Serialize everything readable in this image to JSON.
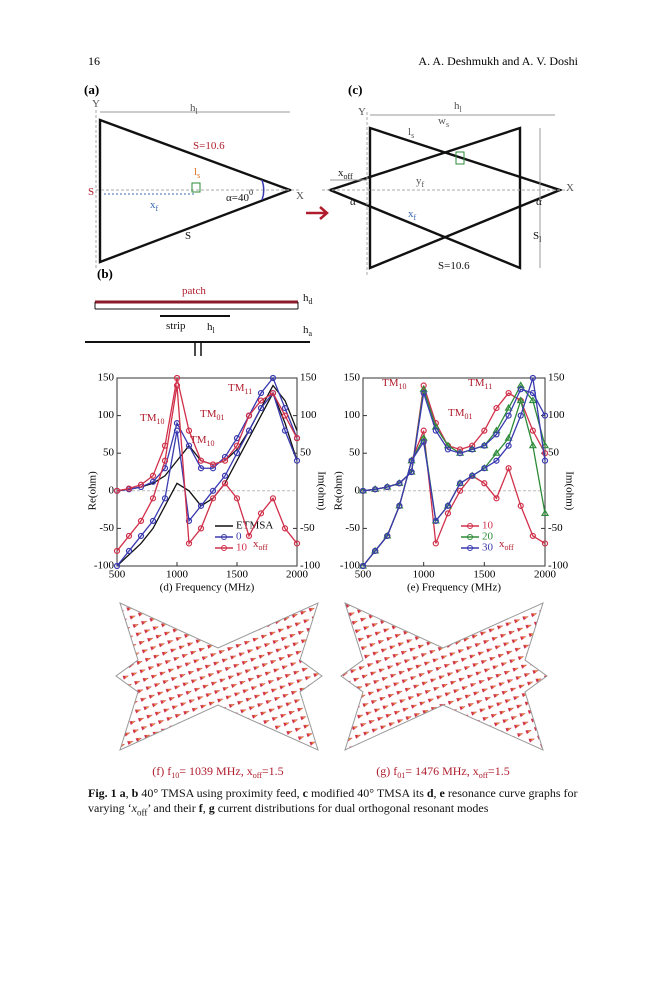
{
  "header": {
    "page": "16",
    "authors": "A. A. Deshmukh and A. V. Doshi"
  },
  "diagram": {
    "a": {
      "label": "(a)",
      "texts": [
        [
          {
            "text": "Y"
          }
        ],
        [
          {
            "text": "h"
          },
          {
            "text": "l",
            "style": "sub"
          }
        ],
        [
          {
            "text": "S=10.6"
          }
        ],
        [
          {
            "text": "S"
          }
        ],
        [
          {
            "text": "x"
          },
          {
            "text": "f",
            "style": "sub"
          }
        ],
        [
          {
            "text": "l"
          },
          {
            "text": "s",
            "style": "sub"
          }
        ],
        [
          {
            "text": "α=40"
          },
          {
            "text": "0",
            "style": "sup"
          }
        ],
        [
          {
            "text": "X"
          }
        ],
        [
          {
            "text": "S"
          }
        ]
      ]
    },
    "b": {
      "label": "(b)",
      "texts": [
        [
          {
            "text": "patch"
          }
        ],
        [
          {
            "text": "h"
          },
          {
            "text": "d",
            "style": "sub"
          }
        ],
        [
          {
            "text": "strip"
          }
        ],
        [
          {
            "text": "h"
          },
          {
            "text": "l",
            "style": "sub"
          }
        ],
        [
          {
            "text": "h"
          },
          {
            "text": "a",
            "style": "sub"
          }
        ]
      ]
    },
    "c": {
      "label": "(c)",
      "texts": [
        [
          {
            "text": "Y"
          }
        ],
        [
          {
            "text": "h"
          },
          {
            "text": "l",
            "style": "sub"
          }
        ],
        [
          {
            "text": "w"
          },
          {
            "text": "s",
            "style": "sub"
          }
        ],
        [
          {
            "text": "l"
          },
          {
            "text": "s",
            "style": "sub"
          }
        ],
        [
          {
            "text": "x"
          },
          {
            "text": "off",
            "style": "sub"
          }
        ],
        [
          {
            "text": "y"
          },
          {
            "text": "f",
            "style": "sub"
          }
        ],
        [
          {
            "text": "x"
          },
          {
            "text": "f",
            "style": "sub"
          }
        ],
        [
          {
            "text": "α"
          }
        ],
        [
          {
            "text": "α"
          }
        ],
        [
          {
            "text": "X"
          }
        ],
        [
          {
            "text": "S"
          },
          {
            "text": "l",
            "style": "sub"
          }
        ],
        [
          {
            "text": "S=10.6"
          }
        ]
      ]
    }
  },
  "charts": [
    {
      "type": "line",
      "xlabel": "(d) Frequency (MHz)",
      "ylabel": "Re(ohm)",
      "y2label": "Im(ohm)",
      "x": [
        500,
        600,
        700,
        800,
        900,
        1000,
        1100,
        1200,
        1300,
        1400,
        1500,
        1600,
        1700,
        1800,
        1900,
        2000
      ],
      "xlim": [
        500,
        2000
      ],
      "xticks": [
        500,
        1000,
        1500,
        2000
      ],
      "ylim": [
        -100,
        150
      ],
      "yticks": [
        -100,
        -50,
        0,
        50,
        100,
        150
      ],
      "y2lim": [
        -100,
        150
      ],
      "y2ticks": [
        -100,
        -50,
        50,
        100,
        150
      ],
      "legend_title": [
        {
          "text": "x"
        },
        {
          "text": "off",
          "style": "sub"
        }
      ],
      "series": [
        {
          "name": "ETMSA",
          "color": "#111111",
          "marker": "none",
          "re": [
            0,
            2,
            5,
            10,
            20,
            40,
            60,
            40,
            35,
            40,
            55,
            80,
            110,
            140,
            120,
            80
          ],
          "im": [
            -100,
            -85,
            -70,
            -50,
            -20,
            10,
            0,
            -20,
            -10,
            10,
            40,
            70,
            100,
            130,
            90,
            40
          ]
        },
        {
          "name": "0",
          "color": "#3a3ab0",
          "marker": "circle",
          "re": [
            0,
            2,
            5,
            12,
            30,
            90,
            60,
            30,
            30,
            45,
            70,
            100,
            130,
            150,
            110,
            70
          ],
          "im": [
            -100,
            -80,
            -60,
            -40,
            -10,
            80,
            -40,
            -20,
            0,
            20,
            50,
            80,
            110,
            130,
            80,
            40
          ]
        },
        {
          "name": "10",
          "color": "#d0304a",
          "marker": "circle",
          "re": [
            0,
            3,
            8,
            20,
            60,
            150,
            80,
            40,
            35,
            40,
            60,
            100,
            120,
            130,
            100,
            70
          ],
          "im": [
            -80,
            -60,
            -40,
            -10,
            40,
            140,
            -70,
            -50,
            -10,
            10,
            -10,
            -60,
            -30,
            -10,
            -50,
            -70
          ]
        }
      ],
      "annotations": [
        [
          {
            "text": "TM"
          },
          {
            "text": "10",
            "style": "sub"
          }
        ],
        [
          {
            "text": "TM"
          },
          {
            "text": "01",
            "style": "sub"
          }
        ],
        [
          {
            "text": "TM"
          },
          {
            "text": "10",
            "style": "sub"
          }
        ],
        [
          {
            "text": "TM"
          },
          {
            "text": "11",
            "style": "sub"
          }
        ]
      ]
    },
    {
      "type": "line",
      "xlabel": "(e) Frequency (MHz)",
      "ylabel": "Re(ohm)",
      "y2label": "Im(ohm)",
      "x": [
        500,
        600,
        700,
        800,
        900,
        1000,
        1100,
        1200,
        1300,
        1400,
        1500,
        1600,
        1700,
        1800,
        1900,
        2000
      ],
      "xlim": [
        500,
        2000
      ],
      "xticks": [
        500,
        1000,
        1500,
        2000
      ],
      "ylim": [
        -100,
        150
      ],
      "yticks": [
        -100,
        -50,
        0,
        50,
        100,
        150
      ],
      "y2lim": [
        -100,
        150
      ],
      "y2ticks": [
        -100,
        -50,
        50,
        100,
        150
      ],
      "legend_title": [
        {
          "text": "x"
        },
        {
          "text": "off",
          "style": "sub"
        }
      ],
      "series": [
        {
          "name": "10",
          "color": "#d0304a",
          "marker": "circle",
          "re": [
            0,
            2,
            5,
            10,
            25,
            140,
            90,
            60,
            55,
            60,
            80,
            110,
            130,
            120,
            80,
            50
          ],
          "im": [
            -100,
            -80,
            -60,
            -20,
            40,
            80,
            -70,
            -30,
            0,
            20,
            10,
            -10,
            30,
            -20,
            -60,
            -70
          ]
        },
        {
          "name": "20",
          "color": "#2e8b3a",
          "marker": "triangle",
          "re": [
            0,
            2,
            5,
            10,
            25,
            135,
            85,
            60,
            50,
            55,
            60,
            80,
            110,
            140,
            120,
            60
          ],
          "im": [
            -100,
            -80,
            -60,
            -20,
            40,
            70,
            -40,
            -20,
            10,
            20,
            30,
            50,
            70,
            120,
            60,
            -30
          ]
        },
        {
          "name": "30",
          "color": "#3a3ab0",
          "marker": "circle",
          "re": [
            0,
            2,
            5,
            10,
            25,
            130,
            80,
            55,
            50,
            55,
            60,
            75,
            100,
            135,
            130,
            100
          ],
          "im": [
            -100,
            -80,
            -60,
            -20,
            40,
            65,
            -40,
            -20,
            10,
            20,
            30,
            40,
            60,
            100,
            150,
            40
          ]
        }
      ],
      "annotations": [
        [
          {
            "text": "TM"
          },
          {
            "text": "10",
            "style": "sub"
          }
        ],
        [
          {
            "text": "TM"
          },
          {
            "text": "11",
            "style": "sub"
          }
        ],
        [
          {
            "text": "TM"
          },
          {
            "text": "01",
            "style": "sub"
          }
        ]
      ]
    }
  ],
  "current": [
    [
      {
        "text": "(f) f"
      },
      {
        "text": "10",
        "style": "sub"
      },
      {
        "text": "= 1039 MHz, x"
      },
      {
        "text": "off",
        "style": "sub"
      },
      {
        "text": "=1.5"
      }
    ],
    [
      {
        "text": "(g) f"
      },
      {
        "text": "01",
        "style": "sub"
      },
      {
        "text": "= 1476 MHz,   x"
      },
      {
        "text": "off",
        "style": "sub"
      },
      {
        "text": "=1.5"
      }
    ]
  ],
  "caption": [
    {
      "text": "Fig. 1",
      "style": "b"
    },
    {
      "text": " "
    },
    {
      "text": "a",
      "style": "b"
    },
    {
      "text": ", "
    },
    {
      "text": "b",
      "style": "b"
    },
    {
      "text": " 40° TMSA using proximity feed, "
    },
    {
      "text": "c",
      "style": "b"
    },
    {
      "text": " modified 40° TMSA its "
    },
    {
      "text": "d",
      "style": "b"
    },
    {
      "text": ", "
    },
    {
      "text": "e",
      "style": "b"
    },
    {
      "text": " resonance curve graphs for varying ‘"
    },
    {
      "text": "x",
      "style": "i"
    },
    {
      "text": "off",
      "style": "sub"
    },
    {
      "text": "’ and their "
    },
    {
      "text": "f",
      "style": "b"
    },
    {
      "text": ", "
    },
    {
      "text": "g",
      "style": "b"
    },
    {
      "text": " current distributions for dual orthogonal resonant modes"
    }
  ]
}
